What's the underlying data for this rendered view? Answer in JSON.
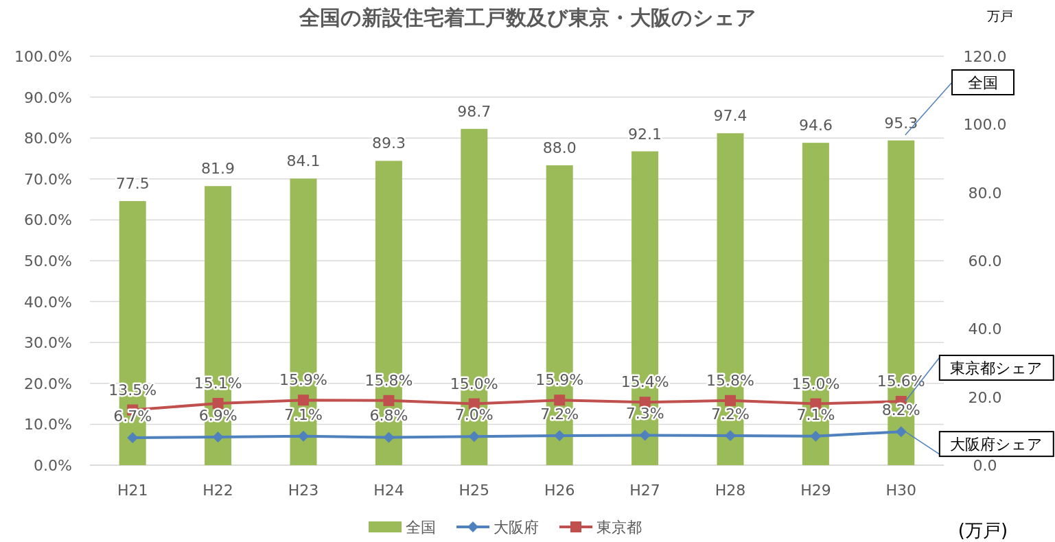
{
  "chart_data": {
    "type": "bar",
    "title": "全国の新設住宅着工戸数及び東京・大阪のシェア",
    "categories": [
      "H21",
      "H22",
      "H23",
      "H24",
      "H25",
      "H26",
      "H27",
      "H28",
      "H29",
      "H30"
    ],
    "series": [
      {
        "name": "全国",
        "axis": "y2",
        "color": "#9bbb59",
        "values": [
          77.5,
          81.9,
          84.1,
          89.3,
          98.7,
          88.0,
          92.1,
          97.4,
          94.6,
          95.3
        ],
        "value_labels": [
          "77.5",
          "81.9",
          "84.1",
          "89.3",
          "98.7",
          "88.0",
          "92.1",
          "97.4",
          "94.6",
          "95.3"
        ]
      },
      {
        "name": "大阪府",
        "type": "line",
        "axis": "y",
        "color": "#4f81bd",
        "marker": "diamond",
        "values": [
          6.7,
          6.9,
          7.1,
          6.8,
          7.0,
          7.2,
          7.3,
          7.2,
          7.1,
          8.2
        ],
        "value_labels": [
          "6.7%",
          "6.9%",
          "7.1%",
          "6.8%",
          "7.0%",
          "7.2%",
          "7.3%",
          "7.2%",
          "7.1%",
          "8.2%"
        ]
      },
      {
        "name": "東京都",
        "type": "line",
        "axis": "y",
        "color": "#c0504d",
        "marker": "square",
        "values": [
          13.5,
          15.1,
          15.9,
          15.8,
          15.0,
          15.9,
          15.4,
          15.8,
          15.0,
          15.6
        ],
        "value_labels": [
          "13.5%",
          "15.1%",
          "15.9%",
          "15.8%",
          "15.0%",
          "15.9%",
          "15.4%",
          "15.8%",
          "15.0%",
          "15.6%"
        ]
      }
    ],
    "ylim": [
      0,
      100
    ],
    "yticks": [
      {
        "value": 0,
        "label": "0.0%"
      },
      {
        "value": 10,
        "label": "10.0%"
      },
      {
        "value": 20,
        "label": "20.0%"
      },
      {
        "value": 30,
        "label": "30.0%"
      },
      {
        "value": 40,
        "label": "40.0%"
      },
      {
        "value": 50,
        "label": "50.0%"
      },
      {
        "value": 60,
        "label": "60.0%"
      },
      {
        "value": 70,
        "label": "70.0%"
      },
      {
        "value": 80,
        "label": "80.0%"
      },
      {
        "value": 90,
        "label": "90.0%"
      },
      {
        "value": 100,
        "label": "100.0%"
      }
    ],
    "y2lim": [
      0,
      120
    ],
    "y2ticks": [
      {
        "value": 0,
        "label": "0.0"
      },
      {
        "value": 20,
        "label": "20.0"
      },
      {
        "value": 40,
        "label": "40.0"
      },
      {
        "value": 60,
        "label": "60.0"
      },
      {
        "value": 80,
        "label": "80.0"
      },
      {
        "value": 100,
        "label": "100.0"
      },
      {
        "value": 120,
        "label": "120.0"
      }
    ],
    "y2label": "万戸",
    "annotations": [
      "全国",
      {
        "text": "大阪府シェア",
        "x": "H30",
        "y": 8.2
      },
      {
        "text": "東京都シェア",
        "x": "H30",
        "y": 15.6
      },
      "(万戸)"
    ],
    "grid": "y",
    "legend": "bottom"
  }
}
